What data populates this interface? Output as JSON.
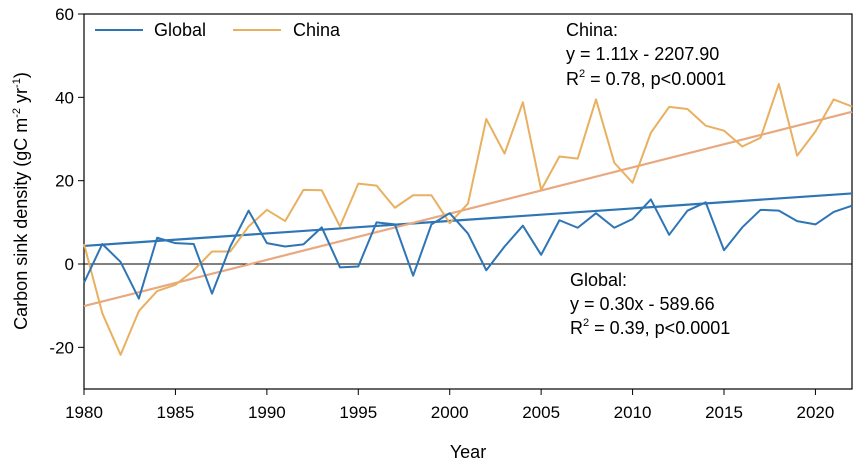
{
  "chart_data": {
    "type": "line",
    "xlabel": "Year",
    "ylabel": "Carbon sink density (gC m",
    "ylabel_sup1": "-2",
    "ylabel_mid": " yr",
    "ylabel_sup2": "-1",
    "ylabel_end": ")",
    "xlim": [
      1980,
      2022
    ],
    "ylim": [
      -30,
      60
    ],
    "xticks": [
      1980,
      1985,
      1990,
      1995,
      2000,
      2005,
      2010,
      2015,
      2020
    ],
    "yticks": [
      -20,
      0,
      20,
      40,
      60
    ],
    "legend_position": "top-left",
    "x": [
      1980,
      1981,
      1982,
      1983,
      1984,
      1985,
      1986,
      1987,
      1988,
      1989,
      1990,
      1991,
      1992,
      1993,
      1994,
      1995,
      1996,
      1997,
      1998,
      1999,
      2000,
      2001,
      2002,
      2003,
      2004,
      2005,
      2006,
      2007,
      2008,
      2009,
      2010,
      2011,
      2012,
      2013,
      2014,
      2015,
      2016,
      2017,
      2018,
      2019,
      2020,
      2021,
      2022
    ],
    "series": [
      {
        "name": "Global",
        "color": "#2e75b6",
        "values": [
          -4.5,
          4.8,
          0.5,
          -8.3,
          6.3,
          5.0,
          4.8,
          -7.1,
          4.2,
          12.8,
          5.0,
          4.2,
          4.7,
          8.8,
          -0.8,
          -0.6,
          10.0,
          9.5,
          -2.8,
          9.5,
          12.2,
          7.3,
          -1.5,
          4.2,
          9.2,
          2.2,
          10.5,
          8.7,
          12.2,
          8.7,
          10.8,
          15.5,
          7.0,
          12.8,
          14.8,
          3.3,
          8.8,
          13.0,
          12.8,
          10.3,
          9.5,
          12.5,
          14.0
        ]
      },
      {
        "name": "China",
        "color": "#e8b060",
        "values": [
          4.8,
          -11.8,
          -21.8,
          -11.3,
          -6.5,
          -5.0,
          -1.5,
          3.0,
          3.0,
          9.0,
          13.0,
          10.3,
          17.8,
          17.7,
          9.0,
          19.3,
          18.8,
          13.5,
          16.5,
          16.5,
          9.8,
          14.5,
          34.8,
          26.5,
          38.8,
          17.8,
          25.8,
          25.3,
          39.5,
          24.3,
          19.5,
          31.5,
          37.7,
          37.2,
          33.2,
          32.0,
          28.2,
          30.3,
          43.2,
          26.0,
          31.8,
          39.5,
          37.8
        ]
      }
    ],
    "trendlines": [
      {
        "series": "Global",
        "slope": 0.3,
        "intercept": -589.66,
        "color": "#2e75b6"
      },
      {
        "series": "China",
        "slope": 1.11,
        "intercept": -2207.9,
        "color": "#e8a880"
      }
    ],
    "annotations": {
      "china": {
        "title": "China:",
        "equation": "y = 1.11x - 2207.90",
        "r_prefix": "R",
        "r_sup": "2",
        "r_rest": " = 0.78, p<0.0001"
      },
      "global": {
        "title": "Global:",
        "equation": "y = 0.30x - 589.66",
        "r_prefix": "R",
        "r_sup": "2",
        "r_rest": " = 0.39, p<0.0001"
      }
    }
  }
}
